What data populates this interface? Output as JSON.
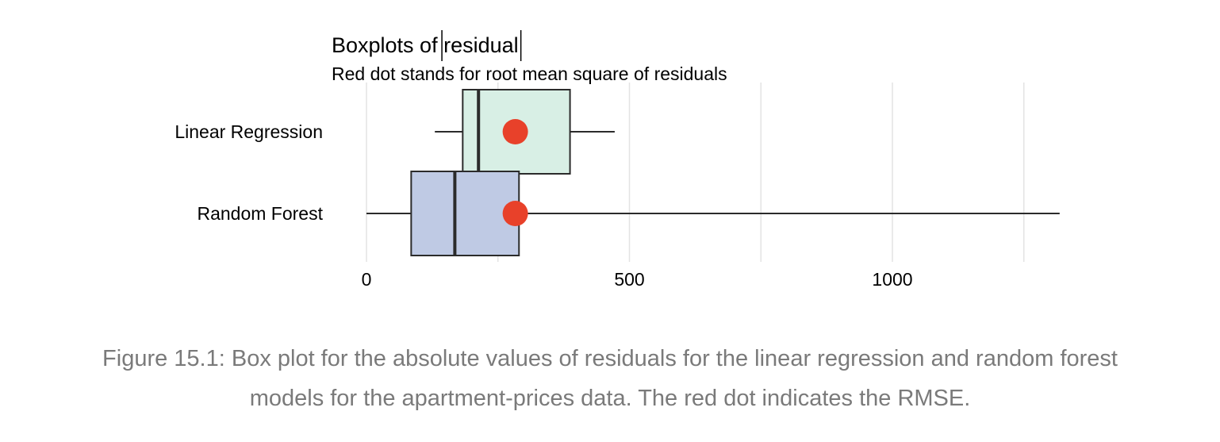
{
  "chart_data": {
    "type": "boxplot",
    "title_prefix": "Boxplots of ",
    "title_variable": "residual",
    "subtitle": "Red dot stands for root mean square of residuals",
    "xlabel": "",
    "ylabel": "",
    "xlim": [
      0,
      1320
    ],
    "x_ticks": [
      0,
      500,
      1000
    ],
    "x_minor_gridlines": [
      250,
      750,
      1250
    ],
    "grid": true,
    "legend": "none",
    "series": [
      {
        "name": "Linear Regression",
        "whisker_low": 130,
        "q1": 183,
        "median": 213,
        "q3": 387,
        "whisker_high": 472,
        "rmse": 283,
        "fill": "#d8efe5"
      },
      {
        "name": "Random Forest",
        "whisker_low": 0,
        "q1": 85,
        "median": 168,
        "q3": 290,
        "whisker_high": 1318,
        "rmse": 283,
        "fill": "#bfcae4"
      }
    ],
    "rmse_color": "#e8412a",
    "box_stroke": "#2b2b2b",
    "grid_color": "#e3e3e3"
  },
  "caption": {
    "line1": "Figure 15.1: Box plot for the absolute values of residuals for the linear regression and random forest",
    "line2": "models for the apartment-prices data. The red dot indicates the RMSE."
  }
}
